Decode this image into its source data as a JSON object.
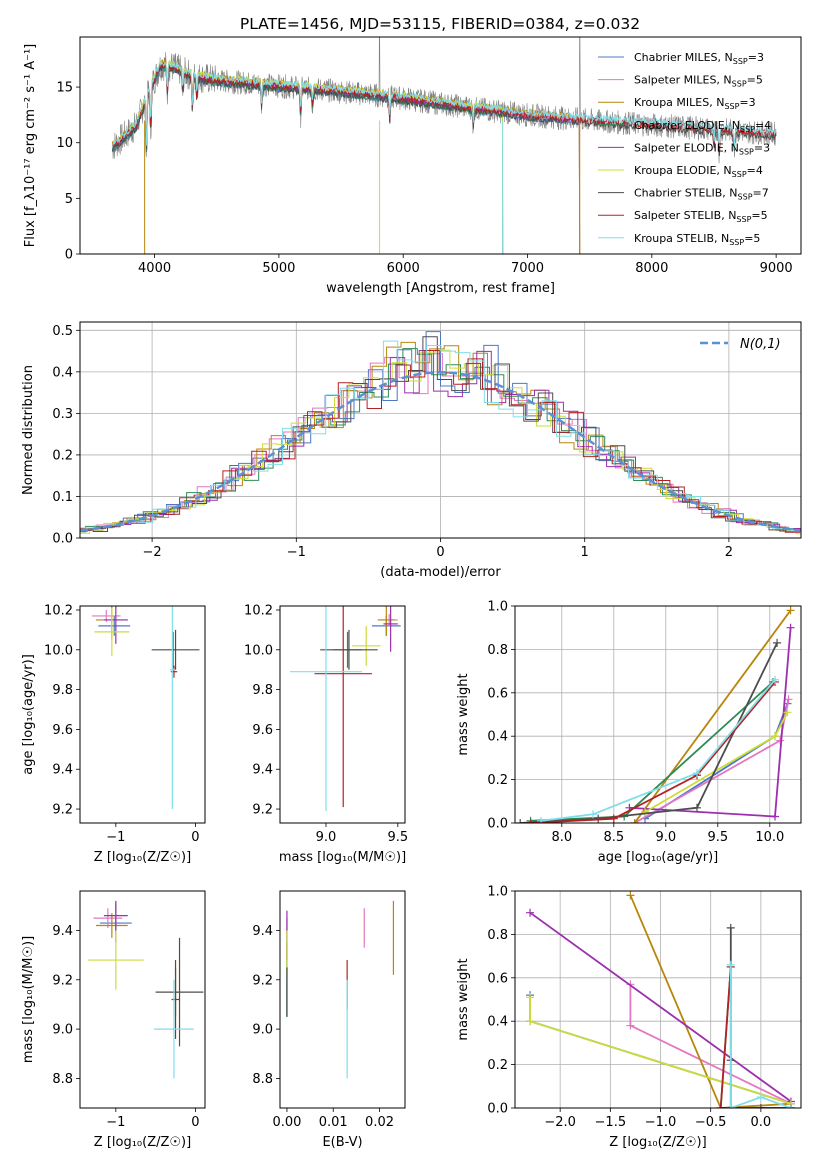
{
  "figure": {
    "title": "PLATE=1456, MJD=53115, FIBERID=0384, z=0.032",
    "colors": [
      "#4c78c8",
      "#e377c2",
      "#b8860b",
      "#2e8b57",
      "#9b2fae",
      "#cddc39",
      "#4d4d4d",
      "#b22222",
      "#80deea"
    ]
  },
  "chart_data": [
    {
      "id": "spectrum",
      "type": "line",
      "xlabel": "wavelength [Angstrom, rest frame]",
      "ylabel": "Flux [f_λ10⁻¹⁷ erg cm⁻² s⁻¹ A⁻¹]",
      "xlim": [
        3400,
        9200
      ],
      "ylim": [
        0,
        19.5
      ],
      "xticks": [
        4000,
        5000,
        6000,
        7000,
        8000,
        9000
      ],
      "yticks": [
        0,
        5,
        10,
        15
      ],
      "grid": false,
      "legend": "right",
      "series": [
        {
          "name": "Chabrier MILES, N",
          "sub": "SSP",
          "suffix": "=3"
        },
        {
          "name": "Salpeter MILES, N",
          "sub": "SSP",
          "suffix": "=5"
        },
        {
          "name": "Kroupa MILES, N",
          "sub": "SSP",
          "suffix": "=3"
        },
        {
          "name": "Chabrier ELODIE, N",
          "sub": "SSP",
          "suffix": "=4"
        },
        {
          "name": "Salpeter ELODIE, N",
          "sub": "SSP",
          "suffix": "=3"
        },
        {
          "name": "Kroupa ELODIE, N",
          "sub": "SSP",
          "suffix": "=4"
        },
        {
          "name": "Chabrier STELIB, N",
          "sub": "SSP",
          "suffix": "=7"
        },
        {
          "name": "Salpeter STELIB, N",
          "sub": "SSP",
          "suffix": "=5"
        },
        {
          "name": "Kroupa STELIB, N",
          "sub": "SSP",
          "suffix": "=5"
        }
      ],
      "continuum": [
        [
          3650,
          9.5
        ],
        [
          3850,
          11.5
        ],
        [
          3950,
          14.5
        ],
        [
          4050,
          17.0
        ],
        [
          4150,
          16.8
        ],
        [
          4300,
          16.0
        ],
        [
          4500,
          15.6
        ],
        [
          5000,
          15.1
        ],
        [
          5500,
          14.6
        ],
        [
          6000,
          14.0
        ],
        [
          6500,
          13.2
        ],
        [
          7000,
          12.5
        ],
        [
          7500,
          12.0
        ],
        [
          8000,
          11.6
        ],
        [
          8500,
          11.2
        ],
        [
          9000,
          10.8
        ]
      ],
      "absorption_lines": [
        [
          3934,
          5
        ],
        [
          3969,
          4
        ],
        [
          4102,
          2.5
        ],
        [
          4227,
          2
        ],
        [
          4304,
          3
        ],
        [
          4340,
          2
        ],
        [
          4861,
          1.8
        ],
        [
          5175,
          2.5
        ],
        [
          5270,
          1.5
        ],
        [
          5892,
          2
        ],
        [
          6563,
          1.5
        ],
        [
          8500,
          1.5
        ],
        [
          8542,
          2
        ],
        [
          8662,
          1.8
        ]
      ],
      "model_end": {
        "MILES": 7420,
        "ELODIE": 6800,
        "STELIB": 9000
      },
      "spikes": [
        [
          3920,
          0
        ],
        [
          5810,
          0
        ],
        [
          6800,
          0
        ],
        [
          7420,
          0
        ]
      ]
    },
    {
      "id": "residuals",
      "type": "histogram",
      "xlabel": "(data-model)/error",
      "ylabel": "Normed distribution",
      "xlim": [
        -2.5,
        2.5
      ],
      "ylim": [
        0,
        0.52
      ],
      "xticks": [
        -2,
        -1,
        0,
        1,
        2
      ],
      "yticks": [
        0,
        0.1,
        0.2,
        0.3,
        0.4,
        0.5
      ],
      "grid": true,
      "legend": "top-right",
      "legend_label": "N(0,1)",
      "bin_width": 0.1,
      "reference": {
        "name": "N(0,1)",
        "mean": 0,
        "sigma": 1
      }
    },
    {
      "id": "age-vs-Z",
      "type": "errorbar",
      "xlabel": "Z [log₁₀(Z/Z☉)]",
      "ylabel": "age  [log₁₀(age/yr)]",
      "xlim": [
        -1.45,
        0.12
      ],
      "ylim": [
        9.13,
        10.22
      ],
      "xticks": [
        -1,
        0
      ],
      "yticks": [
        9.2,
        9.4,
        9.6,
        9.8,
        10.0,
        10.2
      ],
      "grid": false,
      "points": [
        {
          "x": -1.02,
          "xe": 0.2,
          "y": 10.12,
          "ye": 0.05
        },
        {
          "x": -1.12,
          "xe": 0.18,
          "y": 10.17,
          "ye": 0.03
        },
        {
          "x": -1.05,
          "xe": 0.2,
          "y": 10.15,
          "ye": 0.1
        },
        {
          "x": -0.28,
          "xe": 0.02,
          "y": 10.0,
          "ye": 0.09
        },
        {
          "x": -1.0,
          "xe": 0.15,
          "y": 10.15,
          "ye": 0.12
        },
        {
          "x": -1.05,
          "xe": 0.22,
          "y": 10.09,
          "ye": 0.12
        },
        {
          "x": -0.25,
          "xe": 0.3,
          "y": 10.0,
          "ye": 0.1
        },
        {
          "x": -0.27,
          "xe": 0.04,
          "y": 9.89,
          "ye": 0.03
        },
        {
          "x": -0.29,
          "xe": 0.03,
          "y": 9.9,
          "ye": 0.7
        }
      ]
    },
    {
      "id": "age-vs-mass",
      "type": "errorbar",
      "xlabel": "mass [log₁₀(M/M☉)]",
      "ylabel": "",
      "xlim": [
        8.68,
        9.55
      ],
      "ylim": [
        9.13,
        10.22
      ],
      "xticks": [
        9.0,
        9.5
      ],
      "yticks": [
        9.2,
        9.4,
        9.6,
        9.8,
        10.0,
        10.2
      ],
      "grid": false,
      "points": [
        {
          "x": 9.42,
          "xe": 0.1,
          "y": 10.12,
          "ye": 0.05
        },
        {
          "x": 9.44,
          "xe": 0.06,
          "y": 10.15,
          "ye": 0.03
        },
        {
          "x": 9.42,
          "xe": 0.06,
          "y": 10.15,
          "ye": 0.08
        },
        {
          "x": 9.15,
          "xe": 0.1,
          "y": 10.0,
          "ye": 0.09
        },
        {
          "x": 9.45,
          "xe": 0.05,
          "y": 10.13,
          "ye": 0.14
        },
        {
          "x": 9.28,
          "xe": 0.1,
          "y": 10.02,
          "ye": 0.1
        },
        {
          "x": 9.16,
          "xe": 0.2,
          "y": 10.0,
          "ye": 0.1
        },
        {
          "x": 9.12,
          "xe": 0.2,
          "y": 9.88,
          "ye": 0.67
        },
        {
          "x": 9.0,
          "xe": 0.25,
          "y": 9.89,
          "ye": 0.7
        }
      ]
    },
    {
      "id": "weight-vs-age",
      "type": "line",
      "xlabel": "age  [log₁₀(age/yr)]",
      "ylabel": "mass weight",
      "xlim": [
        7.55,
        10.3
      ],
      "ylim": [
        0,
        1
      ],
      "xticks": [
        8.0,
        8.5,
        9.0,
        9.5,
        10.0
      ],
      "yticks": [
        0.0,
        0.2,
        0.4,
        0.6,
        0.8,
        1.0
      ],
      "grid": true,
      "series": [
        [
          [
            8.8,
            0.02
          ],
          [
            10.05,
            0.4
          ],
          [
            10.17,
            0.55
          ]
        ],
        [
          [
            8.7,
            0.0
          ],
          [
            10.1,
            0.38
          ],
          [
            10.18,
            0.57
          ]
        ],
        [
          [
            8.7,
            0.0
          ],
          [
            10.2,
            0.98
          ]
        ],
        [
          [
            7.7,
            0.01
          ],
          [
            8.6,
            0.03
          ],
          [
            10.03,
            0.65
          ]
        ],
        [
          [
            8.65,
            0.07
          ],
          [
            10.05,
            0.03
          ],
          [
            10.2,
            0.9
          ]
        ],
        [
          [
            8.8,
            0.05
          ],
          [
            10.05,
            0.4
          ],
          [
            10.17,
            0.51
          ]
        ],
        [
          [
            7.6,
            0.0
          ],
          [
            8.35,
            0.02
          ],
          [
            9.3,
            0.07
          ],
          [
            10.07,
            0.83
          ]
        ],
        [
          [
            7.7,
            0.0
          ],
          [
            8.5,
            0.02
          ],
          [
            9.3,
            0.22
          ],
          [
            10.05,
            0.65
          ]
        ],
        [
          [
            7.8,
            0.01
          ],
          [
            8.3,
            0.04
          ],
          [
            9.3,
            0.23
          ],
          [
            10.05,
            0.66
          ]
        ]
      ]
    },
    {
      "id": "mass-vs-Z",
      "type": "errorbar",
      "xlabel": "Z [log₁₀(Z/Z☉)]",
      "ylabel": "mass [log₁₀(M/M☉)]",
      "xlim": [
        -1.45,
        0.12
      ],
      "ylim": [
        8.68,
        9.56
      ],
      "xticks": [
        -1,
        0
      ],
      "yticks": [
        8.8,
        9.0,
        9.2,
        9.4
      ],
      "grid": false,
      "points": [
        {
          "x": -1.0,
          "xe": 0.2,
          "y": 9.43,
          "ye": 0.08
        },
        {
          "x": -1.1,
          "xe": 0.18,
          "y": 9.45,
          "ye": 0.04
        },
        {
          "x": -1.05,
          "xe": 0.2,
          "y": 9.42,
          "ye": 0.05
        },
        {
          "x": -0.25,
          "xe": 0.03,
          "y": 9.15,
          "ye": 0.1
        },
        {
          "x": -1.0,
          "xe": 0.15,
          "y": 9.46,
          "ye": 0.06
        },
        {
          "x": -1.0,
          "xe": 0.35,
          "y": 9.28,
          "ye": 0.12
        },
        {
          "x": -0.2,
          "xe": 0.3,
          "y": 9.15,
          "ye": 0.22
        },
        {
          "x": -0.25,
          "xe": 0.05,
          "y": 9.12,
          "ye": 0.16
        },
        {
          "x": -0.27,
          "xe": 0.25,
          "y": 9.0,
          "ye": 0.2
        }
      ]
    },
    {
      "id": "mass-vs-ebv",
      "type": "errorbar",
      "xlabel": "E(B-V)",
      "ylabel": "",
      "xlim": [
        -0.0015,
        0.0255
      ],
      "ylim": [
        8.68,
        9.56
      ],
      "xticks": [
        0.0,
        0.01,
        0.02
      ],
      "yticks": [
        8.8,
        9.0,
        9.2,
        9.4
      ],
      "grid": false,
      "points": [
        {
          "x": 0.0,
          "xe": 0,
          "y": 9.25,
          "ye": 0.2
        },
        {
          "x": 0.0167,
          "xe": 0,
          "y": 9.41,
          "ye": 0.08
        },
        {
          "x": 0.023,
          "xe": 0,
          "y": 9.37,
          "ye": 0.15
        },
        {
          "x": 0.0,
          "xe": 0,
          "y": 9.2,
          "ye": 0.15
        },
        {
          "x": 0.0,
          "xe": 0,
          "y": 9.38,
          "ye": 0.1
        },
        {
          "x": 0.0,
          "xe": 0,
          "y": 9.3,
          "ye": 0.1
        },
        {
          "x": 0.0,
          "xe": 0,
          "y": 9.15,
          "ye": 0.1
        },
        {
          "x": 0.013,
          "xe": 0,
          "y": 9.18,
          "ye": 0.1
        },
        {
          "x": 0.013,
          "xe": 0,
          "y": 9.0,
          "ye": 0.2
        }
      ]
    },
    {
      "id": "weight-vs-Z",
      "type": "line",
      "xlabel": "Z [log₁₀(Z/Z☉)]",
      "ylabel": "mass weight",
      "xlim": [
        -2.45,
        0.4
      ],
      "ylim": [
        0,
        1
      ],
      "xticks": [
        -2.0,
        -1.5,
        -1.0,
        -0.5,
        0.0
      ],
      "yticks": [
        0.0,
        0.2,
        0.4,
        0.6,
        0.8,
        1.0
      ],
      "grid": true,
      "series": [
        [
          [
            -2.3,
            0.52
          ],
          [
            -2.3,
            0.4
          ],
          [
            0.3,
            0.02
          ]
        ],
        [
          [
            -1.3,
            0.57
          ],
          [
            -1.3,
            0.38
          ],
          [
            0.3,
            0.02
          ]
        ],
        [
          [
            -1.3,
            0.98
          ],
          [
            -0.4,
            0.0
          ],
          [
            0.3,
            0.02
          ]
        ],
        [
          [
            -0.3,
            0.65
          ],
          [
            -0.4,
            0.0
          ],
          [
            0.3,
            0.0
          ]
        ],
        [
          [
            -2.3,
            0.9
          ],
          [
            0.3,
            0.03
          ]
        ],
        [
          [
            -2.3,
            0.51
          ],
          [
            -2.3,
            0.4
          ],
          [
            0.3,
            0.02
          ]
        ],
        [
          [
            -0.3,
            0.83
          ],
          [
            -0.3,
            0.22
          ],
          [
            -0.3,
            0.0
          ],
          [
            0.0,
            0.0
          ],
          [
            0.3,
            0.0
          ]
        ],
        [
          [
            -0.3,
            0.65
          ],
          [
            -0.4,
            0.0
          ],
          [
            0.3,
            0.0
          ]
        ],
        [
          [
            -0.3,
            0.66
          ],
          [
            -0.3,
            0.0
          ],
          [
            0.0,
            0.05
          ],
          [
            0.3,
            0.0
          ]
        ]
      ]
    }
  ]
}
